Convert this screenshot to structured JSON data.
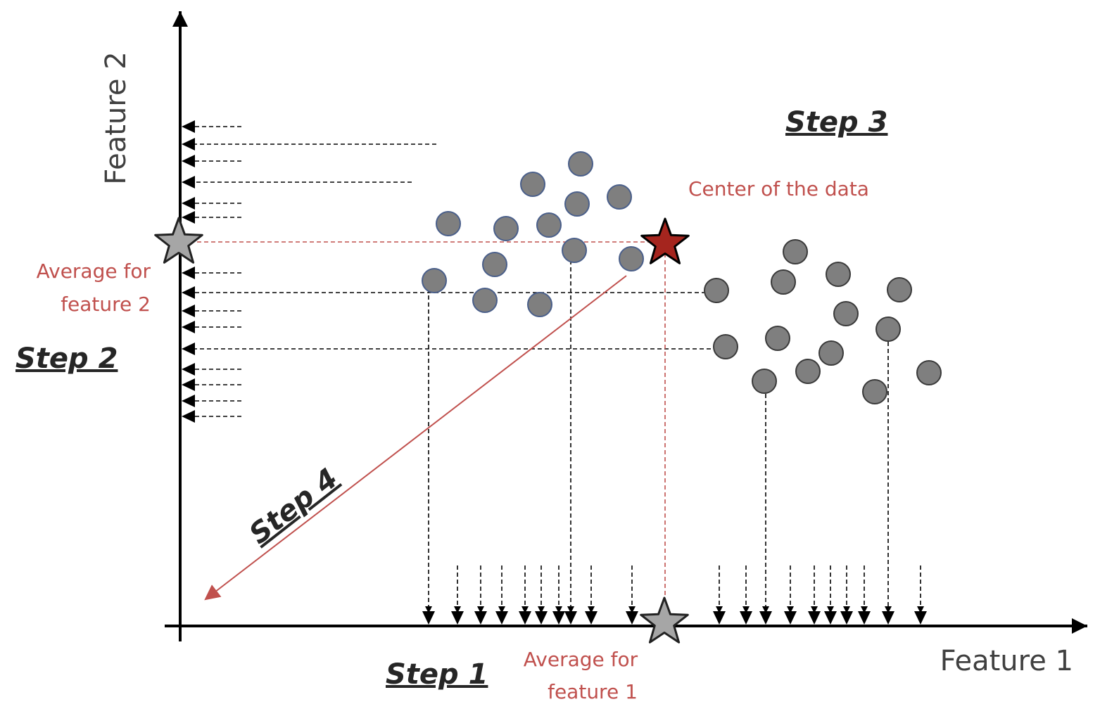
{
  "axes": {
    "x_label": "Feature 1",
    "y_label": "Feature 2"
  },
  "labels": {
    "center": "Center of the data",
    "avg_f2_line1": "Average for",
    "avg_f2_line2": "feature 2",
    "avg_f1_line1": "Average for",
    "avg_f1_line2": "feature 1"
  },
  "steps": {
    "step1": "Step 1",
    "step2": "Step 2",
    "step3": "Step 3",
    "step4": "Step 4"
  },
  "colors": {
    "point_fill": "#7f7f7f",
    "cluster1_stroke": "#4a5f8a",
    "cluster2_stroke": "#3a3a3a",
    "accent_red": "#c0504d",
    "center_star": "#a5251e",
    "avg_star": "#a6a6a6",
    "axis": "#000000"
  },
  "icons": {
    "center_marker": "star-icon",
    "average_marker": "star-icon"
  }
}
